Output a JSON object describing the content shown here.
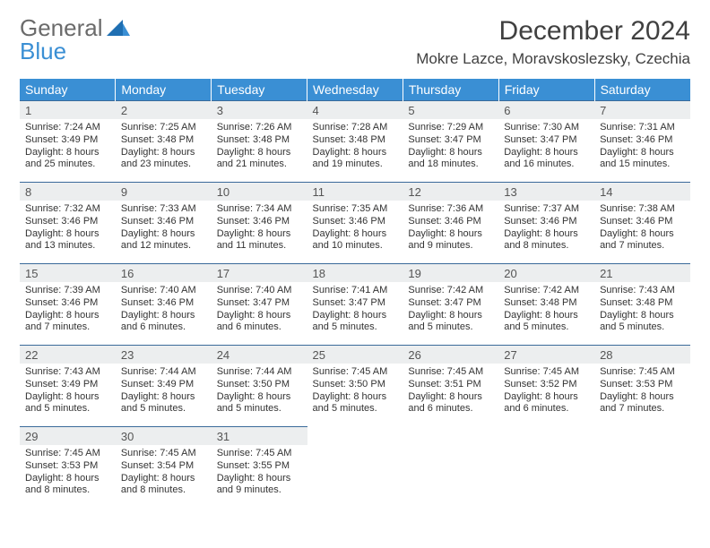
{
  "brand": {
    "general": "General",
    "blue": "Blue"
  },
  "title": "December 2024",
  "location": "Mokre Lazce, Moravskoslezsky, Czechia",
  "theme": {
    "header_bg": "#3a8fd4",
    "header_text": "#ffffff",
    "daynum_bg": "#eceeef",
    "daynum_border": "#3a6a9a",
    "page_bg": "#ffffff",
    "text": "#333333"
  },
  "day_labels": [
    "Sunday",
    "Monday",
    "Tuesday",
    "Wednesday",
    "Thursday",
    "Friday",
    "Saturday"
  ],
  "weeks": [
    [
      {
        "n": "1",
        "sunrise": "Sunrise: 7:24 AM",
        "sunset": "Sunset: 3:49 PM",
        "daylight1": "Daylight: 8 hours",
        "daylight2": "and 25 minutes."
      },
      {
        "n": "2",
        "sunrise": "Sunrise: 7:25 AM",
        "sunset": "Sunset: 3:48 PM",
        "daylight1": "Daylight: 8 hours",
        "daylight2": "and 23 minutes."
      },
      {
        "n": "3",
        "sunrise": "Sunrise: 7:26 AM",
        "sunset": "Sunset: 3:48 PM",
        "daylight1": "Daylight: 8 hours",
        "daylight2": "and 21 minutes."
      },
      {
        "n": "4",
        "sunrise": "Sunrise: 7:28 AM",
        "sunset": "Sunset: 3:48 PM",
        "daylight1": "Daylight: 8 hours",
        "daylight2": "and 19 minutes."
      },
      {
        "n": "5",
        "sunrise": "Sunrise: 7:29 AM",
        "sunset": "Sunset: 3:47 PM",
        "daylight1": "Daylight: 8 hours",
        "daylight2": "and 18 minutes."
      },
      {
        "n": "6",
        "sunrise": "Sunrise: 7:30 AM",
        "sunset": "Sunset: 3:47 PM",
        "daylight1": "Daylight: 8 hours",
        "daylight2": "and 16 minutes."
      },
      {
        "n": "7",
        "sunrise": "Sunrise: 7:31 AM",
        "sunset": "Sunset: 3:46 PM",
        "daylight1": "Daylight: 8 hours",
        "daylight2": "and 15 minutes."
      }
    ],
    [
      {
        "n": "8",
        "sunrise": "Sunrise: 7:32 AM",
        "sunset": "Sunset: 3:46 PM",
        "daylight1": "Daylight: 8 hours",
        "daylight2": "and 13 minutes."
      },
      {
        "n": "9",
        "sunrise": "Sunrise: 7:33 AM",
        "sunset": "Sunset: 3:46 PM",
        "daylight1": "Daylight: 8 hours",
        "daylight2": "and 12 minutes."
      },
      {
        "n": "10",
        "sunrise": "Sunrise: 7:34 AM",
        "sunset": "Sunset: 3:46 PM",
        "daylight1": "Daylight: 8 hours",
        "daylight2": "and 11 minutes."
      },
      {
        "n": "11",
        "sunrise": "Sunrise: 7:35 AM",
        "sunset": "Sunset: 3:46 PM",
        "daylight1": "Daylight: 8 hours",
        "daylight2": "and 10 minutes."
      },
      {
        "n": "12",
        "sunrise": "Sunrise: 7:36 AM",
        "sunset": "Sunset: 3:46 PM",
        "daylight1": "Daylight: 8 hours",
        "daylight2": "and 9 minutes."
      },
      {
        "n": "13",
        "sunrise": "Sunrise: 7:37 AM",
        "sunset": "Sunset: 3:46 PM",
        "daylight1": "Daylight: 8 hours",
        "daylight2": "and 8 minutes."
      },
      {
        "n": "14",
        "sunrise": "Sunrise: 7:38 AM",
        "sunset": "Sunset: 3:46 PM",
        "daylight1": "Daylight: 8 hours",
        "daylight2": "and 7 minutes."
      }
    ],
    [
      {
        "n": "15",
        "sunrise": "Sunrise: 7:39 AM",
        "sunset": "Sunset: 3:46 PM",
        "daylight1": "Daylight: 8 hours",
        "daylight2": "and 7 minutes."
      },
      {
        "n": "16",
        "sunrise": "Sunrise: 7:40 AM",
        "sunset": "Sunset: 3:46 PM",
        "daylight1": "Daylight: 8 hours",
        "daylight2": "and 6 minutes."
      },
      {
        "n": "17",
        "sunrise": "Sunrise: 7:40 AM",
        "sunset": "Sunset: 3:47 PM",
        "daylight1": "Daylight: 8 hours",
        "daylight2": "and 6 minutes."
      },
      {
        "n": "18",
        "sunrise": "Sunrise: 7:41 AM",
        "sunset": "Sunset: 3:47 PM",
        "daylight1": "Daylight: 8 hours",
        "daylight2": "and 5 minutes."
      },
      {
        "n": "19",
        "sunrise": "Sunrise: 7:42 AM",
        "sunset": "Sunset: 3:47 PM",
        "daylight1": "Daylight: 8 hours",
        "daylight2": "and 5 minutes."
      },
      {
        "n": "20",
        "sunrise": "Sunrise: 7:42 AM",
        "sunset": "Sunset: 3:48 PM",
        "daylight1": "Daylight: 8 hours",
        "daylight2": "and 5 minutes."
      },
      {
        "n": "21",
        "sunrise": "Sunrise: 7:43 AM",
        "sunset": "Sunset: 3:48 PM",
        "daylight1": "Daylight: 8 hours",
        "daylight2": "and 5 minutes."
      }
    ],
    [
      {
        "n": "22",
        "sunrise": "Sunrise: 7:43 AM",
        "sunset": "Sunset: 3:49 PM",
        "daylight1": "Daylight: 8 hours",
        "daylight2": "and 5 minutes."
      },
      {
        "n": "23",
        "sunrise": "Sunrise: 7:44 AM",
        "sunset": "Sunset: 3:49 PM",
        "daylight1": "Daylight: 8 hours",
        "daylight2": "and 5 minutes."
      },
      {
        "n": "24",
        "sunrise": "Sunrise: 7:44 AM",
        "sunset": "Sunset: 3:50 PM",
        "daylight1": "Daylight: 8 hours",
        "daylight2": "and 5 minutes."
      },
      {
        "n": "25",
        "sunrise": "Sunrise: 7:45 AM",
        "sunset": "Sunset: 3:50 PM",
        "daylight1": "Daylight: 8 hours",
        "daylight2": "and 5 minutes."
      },
      {
        "n": "26",
        "sunrise": "Sunrise: 7:45 AM",
        "sunset": "Sunset: 3:51 PM",
        "daylight1": "Daylight: 8 hours",
        "daylight2": "and 6 minutes."
      },
      {
        "n": "27",
        "sunrise": "Sunrise: 7:45 AM",
        "sunset": "Sunset: 3:52 PM",
        "daylight1": "Daylight: 8 hours",
        "daylight2": "and 6 minutes."
      },
      {
        "n": "28",
        "sunrise": "Sunrise: 7:45 AM",
        "sunset": "Sunset: 3:53 PM",
        "daylight1": "Daylight: 8 hours",
        "daylight2": "and 7 minutes."
      }
    ],
    [
      {
        "n": "29",
        "sunrise": "Sunrise: 7:45 AM",
        "sunset": "Sunset: 3:53 PM",
        "daylight1": "Daylight: 8 hours",
        "daylight2": "and 8 minutes."
      },
      {
        "n": "30",
        "sunrise": "Sunrise: 7:45 AM",
        "sunset": "Sunset: 3:54 PM",
        "daylight1": "Daylight: 8 hours",
        "daylight2": "and 8 minutes."
      },
      {
        "n": "31",
        "sunrise": "Sunrise: 7:45 AM",
        "sunset": "Sunset: 3:55 PM",
        "daylight1": "Daylight: 8 hours",
        "daylight2": "and 9 minutes."
      },
      null,
      null,
      null,
      null
    ]
  ]
}
